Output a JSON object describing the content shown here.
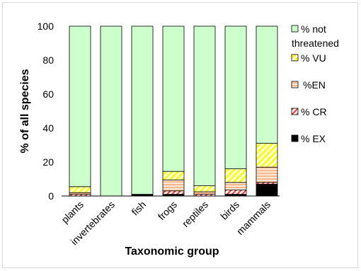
{
  "chart_data": {
    "type": "bar",
    "stacked": true,
    "categories": [
      "plants",
      "invertebrates",
      "fish",
      "frogs",
      "reptiles",
      "birds",
      "mammals"
    ],
    "series": [
      {
        "name": "% EX",
        "key": "ex",
        "values": [
          0,
          0,
          0.5,
          1,
          0,
          1,
          7
        ]
      },
      {
        "name": "% CR",
        "key": "cr",
        "values": [
          1,
          0,
          0,
          2,
          1,
          2.5,
          1
        ]
      },
      {
        "name": "%EN",
        "key": "en",
        "values": [
          1,
          0,
          0.3,
          6.5,
          1.5,
          4.5,
          9
        ]
      },
      {
        "name": "% VU",
        "key": "vu",
        "values": [
          3.5,
          0,
          0.2,
          5,
          3.5,
          8,
          14
        ]
      },
      {
        "name": "% not threatened",
        "key": "nt",
        "values": [
          94.5,
          100,
          99,
          85.5,
          94,
          84,
          69
        ]
      }
    ],
    "legend_order": [
      "nt",
      "vu",
      "en",
      "cr",
      "ex"
    ],
    "legend_placement": "right",
    "xlabel": "Taxonomic group",
    "ylabel": "% of all species",
    "ylim": [
      0,
      100
    ],
    "yticks": [
      "0",
      "20",
      "40",
      "60",
      "80",
      "100"
    ],
    "colors": {
      "nt": "#ccffcc",
      "vu": "#ffff00",
      "en": "#fcd5b4",
      "cr": "#ff3333",
      "ex": "#000000",
      "stroke": "#000000"
    }
  }
}
